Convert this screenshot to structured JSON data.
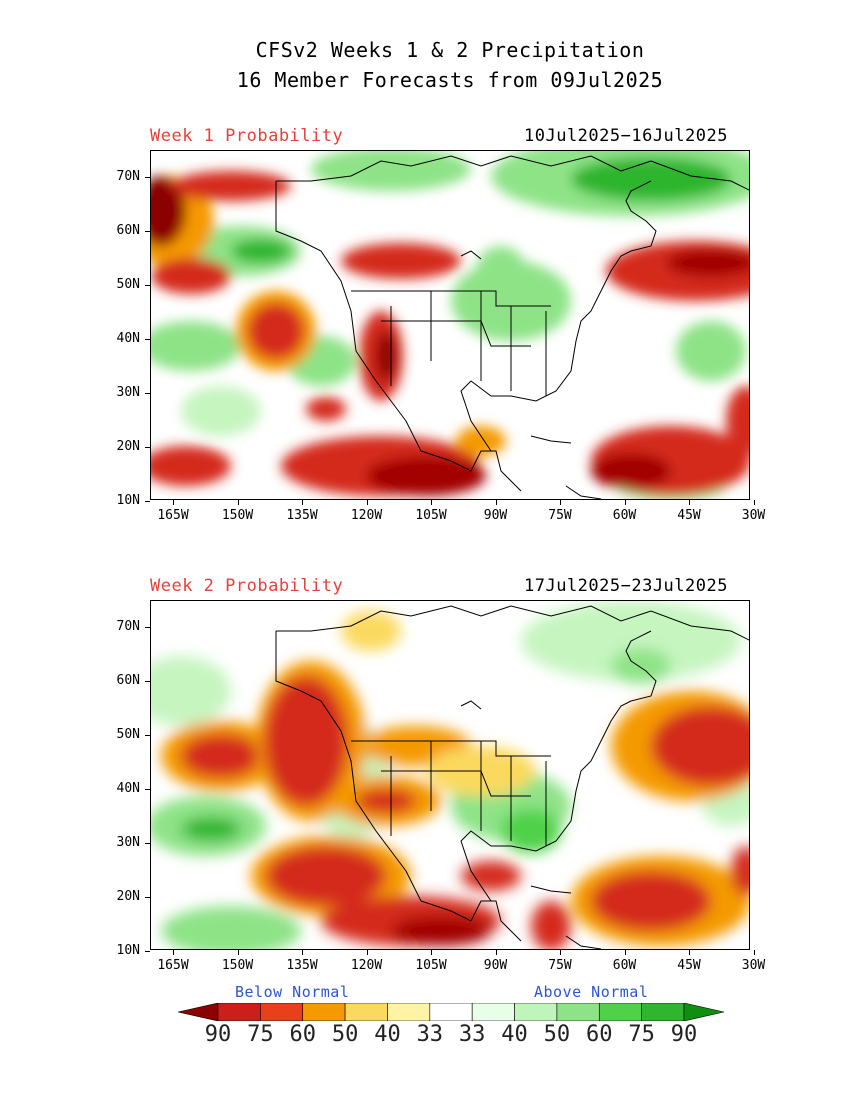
{
  "title_line1": "CFSv2 Weeks 1 & 2 Precipitation",
  "title_line2": "16 Member Forecasts from 09Jul2025",
  "panels": [
    {
      "label": "Week 1 Probability",
      "dates": "10Jul2025−16Jul2025"
    },
    {
      "label": "Week 2 Probability",
      "dates": "17Jul2025−23Jul2025"
    }
  ],
  "lat_ticks": [
    "70N",
    "60N",
    "50N",
    "40N",
    "30N",
    "20N",
    "10N"
  ],
  "lon_ticks": [
    "165W",
    "150W",
    "135W",
    "120W",
    "105W",
    "90W",
    "75W",
    "60W",
    "45W",
    "30W"
  ],
  "legend": {
    "below_title": "Below Normal",
    "above_title": "Above Normal",
    "labels": [
      "90",
      "75",
      "60",
      "50",
      "40",
      "33",
      "33",
      "40",
      "50",
      "60",
      "75",
      "90"
    ],
    "colors": [
      "#8b0000",
      "#cc1f1a",
      "#e8401c",
      "#f49a00",
      "#fbd95e",
      "#fff4a6",
      "#ffffff",
      "#e6ffe6",
      "#bff5bb",
      "#8ee387",
      "#4fd24a",
      "#2fb52f",
      "#0f8f0f"
    ]
  },
  "colors": {
    "red_strong": "#a30000",
    "red": "#d42a1e",
    "orange": "#f5a000",
    "yellow": "#ffe680",
    "green_light": "#c6f5c0",
    "green": "#66d95e",
    "green_strong": "#169c16"
  }
}
